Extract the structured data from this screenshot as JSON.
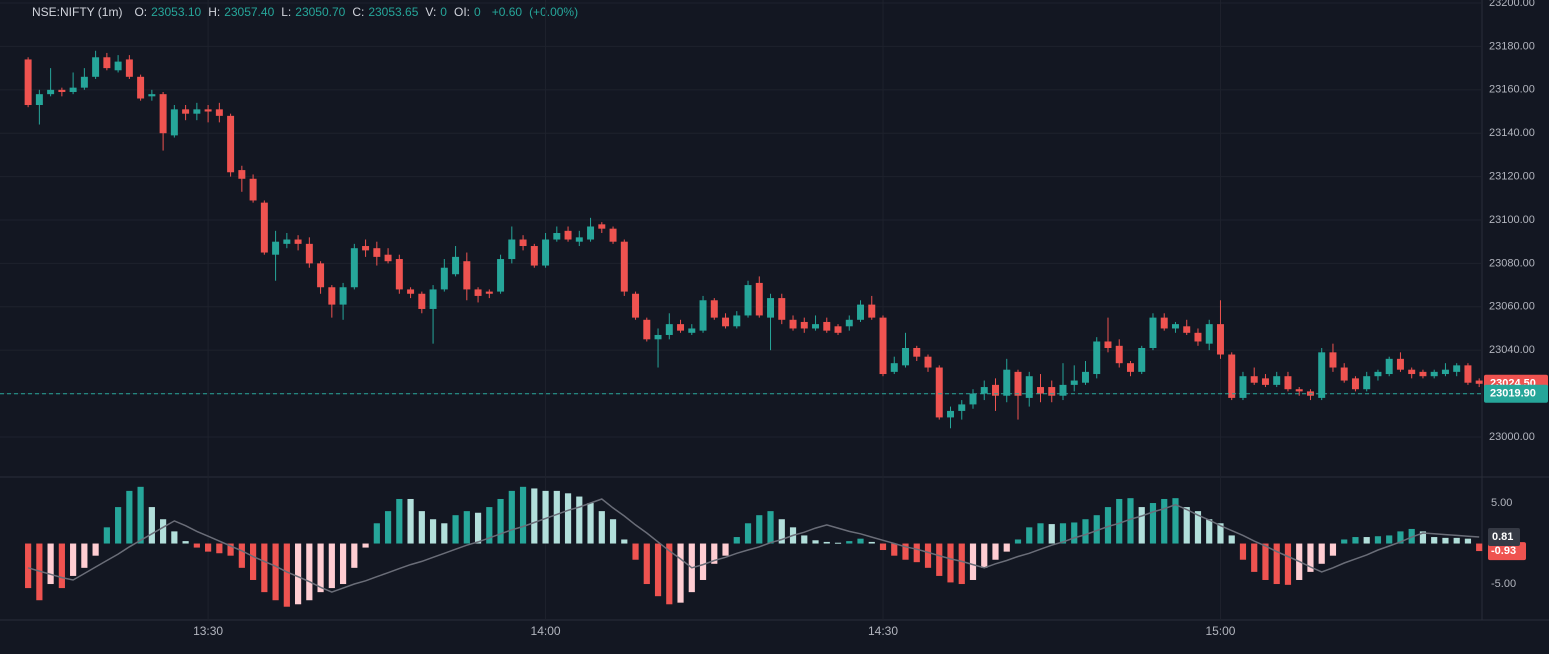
{
  "chart_data": [
    {
      "type": "candlestick",
      "symbol": "NSE:NIFTY (1m)",
      "legend": [
        {
          "label": "O:",
          "value": "23053.10"
        },
        {
          "label": "H:",
          "value": "23057.40"
        },
        {
          "label": "L:",
          "value": "23050.70"
        },
        {
          "label": "C:",
          "value": "23053.65"
        },
        {
          "label": "V:",
          "value": "0"
        },
        {
          "label": "OI:",
          "value": "0"
        }
      ],
      "change": "+0.60",
      "change_pct": "(+0.00%)",
      "up_color": "#26a69a",
      "down_color": "#ef5350",
      "xlim": [
        -2.5,
        129.25
      ],
      "xticks": [
        {
          "value": 16,
          "label": "13:30"
        },
        {
          "value": 46,
          "label": "14:00"
        },
        {
          "value": 76,
          "label": "14:30"
        },
        {
          "value": 106,
          "label": "15:00"
        }
      ],
      "ylim": [
        22982,
        23201.4
      ],
      "yticks": [
        {
          "value": 23000,
          "label": "23000.00"
        },
        {
          "value": 23020,
          "label": "23020.00"
        },
        {
          "value": 23040,
          "label": "23040.00"
        },
        {
          "value": 23060,
          "label": "23060.00"
        },
        {
          "value": 23080,
          "label": "23080.00"
        },
        {
          "value": 23100,
          "label": "23100.00"
        },
        {
          "value": 23120,
          "label": "23120.00"
        },
        {
          "value": 23140,
          "label": "23140.00"
        },
        {
          "value": 23160,
          "label": "23160.00"
        },
        {
          "value": 23180,
          "label": "23180.00"
        },
        {
          "value": 23200,
          "label": "23200.00"
        }
      ],
      "grid": true,
      "price_lines": [
        {
          "value": 23024.5,
          "label": "23024.50",
          "color": "#ef5350",
          "dashed": false
        },
        {
          "value": 23019.9,
          "label": "23019.90",
          "color": "#26a69a",
          "dashed": true
        }
      ],
      "ohlc": [
        [
          23174,
          23175,
          23152,
          23153
        ],
        [
          23153,
          23160,
          23144,
          23158
        ],
        [
          23158,
          23170,
          23157,
          23160
        ],
        [
          23160,
          23161,
          23157,
          23159
        ],
        [
          23159,
          23168,
          23158,
          23161
        ],
        [
          23161,
          23170,
          23160,
          23166
        ],
        [
          23166,
          23178,
          23165,
          23175
        ],
        [
          23175,
          23177,
          23169,
          23170
        ],
        [
          23169,
          23176,
          23168,
          23173
        ],
        [
          23174,
          23176,
          23165,
          23166
        ],
        [
          23166,
          23167,
          23155,
          23156
        ],
        [
          23157,
          23160,
          23155,
          23158
        ],
        [
          23158,
          23159,
          23132,
          23140
        ],
        [
          23139,
          23153,
          23138,
          23151
        ],
        [
          23151,
          23153,
          23146,
          23149
        ],
        [
          23149,
          23154,
          23146,
          23151
        ],
        [
          23151,
          23153,
          23145,
          23150
        ],
        [
          23151,
          23154,
          23145,
          23148
        ],
        [
          23148,
          23149,
          23120,
          23122
        ],
        [
          23123,
          23125,
          23113,
          23119
        ],
        [
          23119,
          23121,
          23108,
          23109
        ],
        [
          23108,
          23109,
          23084,
          23085
        ],
        [
          23084,
          23095,
          23072,
          23090
        ],
        [
          23089,
          23094,
          23087,
          23091
        ],
        [
          23091,
          23093,
          23086,
          23089
        ],
        [
          23089,
          23092,
          23078,
          23080
        ],
        [
          23080,
          23081,
          23066,
          23069
        ],
        [
          23069,
          23070,
          23055,
          23061
        ],
        [
          23061,
          23071,
          23054,
          23069
        ],
        [
          23069,
          23089,
          23068,
          23087
        ],
        [
          23088,
          23091,
          23083,
          23086
        ],
        [
          23087,
          23090,
          23079,
          23083
        ],
        [
          23084,
          23087,
          23080,
          23081
        ],
        [
          23082,
          23084,
          23066,
          23068
        ],
        [
          23068,
          23069,
          23064,
          23066
        ],
        [
          23066,
          23067,
          23057,
          23059
        ],
        [
          23059,
          23070,
          23043,
          23068
        ],
        [
          23068,
          23082,
          23067,
          23078
        ],
        [
          23075,
          23088,
          23074,
          23083
        ],
        [
          23081,
          23085,
          23063,
          23068
        ],
        [
          23068,
          23069,
          23062,
          23065
        ],
        [
          23067,
          23068,
          23064,
          23066
        ],
        [
          23067,
          23084,
          23066,
          23082
        ],
        [
          23082,
          23097,
          23080,
          23091
        ],
        [
          23091,
          23093,
          23086,
          23088
        ],
        [
          23088,
          23089,
          23078,
          23079
        ],
        [
          23079,
          23094,
          23078,
          23091
        ],
        [
          23091,
          23097,
          23090,
          23094
        ],
        [
          23095,
          23097,
          23090,
          23091
        ],
        [
          23090,
          23095,
          23088,
          23092
        ],
        [
          23091,
          23101,
          23090,
          23097
        ],
        [
          23098,
          23099,
          23094,
          23096
        ],
        [
          23096,
          23097,
          23089,
          23090
        ],
        [
          23090,
          23091,
          23065,
          23067
        ],
        [
          23066,
          23067,
          23054,
          23055
        ],
        [
          23054,
          23055,
          23044,
          23045
        ],
        [
          23045,
          23050,
          23032,
          23047
        ],
        [
          23047,
          23057,
          23045,
          23052
        ],
        [
          23052,
          23054,
          23048,
          23049
        ],
        [
          23048,
          23052,
          23047,
          23050
        ],
        [
          23049,
          23065,
          23048,
          23063
        ],
        [
          23063,
          23064,
          23054,
          23055
        ],
        [
          23055,
          23057,
          23050,
          23051
        ],
        [
          23051,
          23058,
          23050,
          23056
        ],
        [
          23056,
          23072,
          23055,
          23070
        ],
        [
          23071,
          23074,
          23055,
          23056
        ],
        [
          23055,
          23066,
          23040,
          23064
        ],
        [
          23064,
          23066,
          23052,
          23054
        ],
        [
          23054,
          23056,
          23049,
          23050
        ],
        [
          23053,
          23055,
          23048,
          23050
        ],
        [
          23050,
          23056,
          23049,
          23052
        ],
        [
          23053,
          23055,
          23048,
          23049
        ],
        [
          23051,
          23052,
          23047,
          23048
        ],
        [
          23051,
          23056,
          23049,
          23054
        ],
        [
          23054,
          23063,
          23053,
          23061
        ],
        [
          23061,
          23065,
          23054,
          23055
        ],
        [
          23055,
          23056,
          23028,
          23029
        ],
        [
          23030,
          23037,
          23029,
          23034
        ],
        [
          23033,
          23048,
          23032,
          23041
        ],
        [
          23041,
          23042,
          23035,
          23037
        ],
        [
          23037,
          23038,
          23030,
          23032
        ],
        [
          23032,
          23033,
          23008,
          23009
        ],
        [
          23009,
          23014,
          23004,
          23012
        ],
        [
          23012,
          23017,
          23008,
          23015
        ],
        [
          23015,
          23022,
          23013,
          23020
        ],
        [
          23020,
          23026,
          23017,
          23023
        ],
        [
          23024,
          23027,
          23012,
          23019
        ],
        [
          23019,
          23036,
          23016,
          23031
        ],
        [
          23030,
          23031,
          23008,
          23019
        ],
        [
          23018,
          23030,
          23014,
          23028
        ],
        [
          23023,
          23029,
          23016,
          23020
        ],
        [
          23023,
          23026,
          23016,
          23019
        ],
        [
          23019,
          23034,
          23017,
          23024
        ],
        [
          23024,
          23033,
          23021,
          23026
        ],
        [
          23025,
          23035,
          23024,
          23030
        ],
        [
          23029,
          23046,
          23027,
          23044
        ],
        [
          23044,
          23055,
          23039,
          23041
        ],
        [
          23042,
          23045,
          23032,
          23034
        ],
        [
          23034,
          23035,
          23028,
          23030
        ],
        [
          23030,
          23042,
          23029,
          23041
        ],
        [
          23041,
          23057,
          23040,
          23055
        ],
        [
          23055,
          23057,
          23049,
          23050
        ],
        [
          23050,
          23053,
          23048,
          23052
        ],
        [
          23051,
          23054,
          23047,
          23048
        ],
        [
          23048,
          23050,
          23042,
          23044
        ],
        [
          23043,
          23054,
          23040,
          23052
        ],
        [
          23052,
          23063,
          23036,
          23038
        ],
        [
          23038,
          23039,
          23017,
          23018
        ],
        [
          23018,
          23030,
          23017,
          23028
        ],
        [
          23028,
          23032,
          23024,
          23025
        ],
        [
          23027,
          23029,
          23023,
          23024
        ],
        [
          23024,
          23030,
          23023,
          23028
        ],
        [
          23028,
          23030,
          23021,
          23022
        ],
        [
          23022,
          23023,
          23019,
          23021
        ],
        [
          23021,
          23022,
          23017,
          23019
        ],
        [
          23018,
          23041,
          23017,
          23039
        ],
        [
          23039,
          23043,
          23030,
          23032
        ],
        [
          23032,
          23034,
          23025,
          23026
        ],
        [
          23027,
          23028,
          23021,
          23022
        ],
        [
          23022,
          23030,
          23021,
          23028
        ],
        [
          23028,
          23031,
          23026,
          23030
        ],
        [
          23029,
          23037,
          23028,
          23036
        ],
        [
          23036,
          23039,
          23030,
          23031
        ],
        [
          23031,
          23032,
          23027,
          23029
        ],
        [
          23030,
          23031,
          23027,
          23028
        ],
        [
          23028,
          23031,
          23027,
          23030
        ],
        [
          23029,
          23034,
          23028,
          23031
        ],
        [
          23030,
          23034,
          23028,
          23033
        ],
        [
          23033,
          23034,
          23024,
          23025
        ],
        [
          23026,
          23027,
          23023,
          23024.5
        ]
      ]
    },
    {
      "type": "histogram-indicator",
      "xlim": [
        -2.5,
        129.25
      ],
      "ylim": [
        -9.44,
        8.09
      ],
      "yticks": [
        {
          "value": 5,
          "label": "5.00"
        },
        {
          "value": -5,
          "label": "-5.00"
        }
      ],
      "colors": {
        "up_rising": "#26a69a",
        "up_falling": "#b2dfdb",
        "down_falling": "#ef5350",
        "down_rising": "#ffcdd2"
      },
      "series": [
        {
          "kind": "bars",
          "values": [
            -5.5,
            -7,
            -5,
            -5.5,
            -4,
            -3,
            -1.5,
            2,
            4.5,
            6.5,
            7,
            4.5,
            3,
            1.5,
            0.3,
            -0.5,
            -1,
            -1.2,
            -1.5,
            -3,
            -4.5,
            -6,
            -7,
            -7.8,
            -7.5,
            -7,
            -6,
            -5.5,
            -5,
            -3,
            -0.5,
            2.5,
            4,
            5.5,
            5.5,
            4,
            3,
            2.5,
            3.5,
            4,
            3.8,
            4.5,
            5.5,
            6.5,
            7,
            6.8,
            6.5,
            6.5,
            6.2,
            5.8,
            5,
            4,
            3,
            0.5,
            -2,
            -5,
            -6.5,
            -7.5,
            -7.3,
            -6,
            -4.5,
            -2.5,
            -1.5,
            0.8,
            2.5,
            3.5,
            4,
            3,
            2,
            1,
            0.4,
            0.2,
            0.1,
            0.3,
            0.6,
            0.2,
            -0.8,
            -1.5,
            -2,
            -2.3,
            -3,
            -4,
            -4.8,
            -5,
            -4.5,
            -3,
            -2,
            -1,
            0.5,
            2,
            2.5,
            2.4,
            2.5,
            2.6,
            3,
            3.5,
            4.5,
            5.5,
            5.6,
            4.5,
            5,
            5.5,
            5.6,
            4.5,
            4,
            3,
            2.5,
            1,
            -2,
            -3.5,
            -4.5,
            -5,
            -5.1,
            -4.5,
            -3.5,
            -2.5,
            -1.5,
            0.5,
            0.8,
            0.8,
            0.9,
            1,
            1.5,
            1.8,
            1.5,
            0.8,
            0.7,
            0.7,
            0.6,
            -0.93
          ],
          "last_label": "-0.93"
        },
        {
          "kind": "line",
          "color": "#6a6d78",
          "values": [
            -3,
            -3.4,
            -3.8,
            -4.2,
            -4.5,
            -3.7,
            -2.9,
            -2.1,
            -1.3,
            -0.4,
            0.4,
            1.2,
            2.0,
            2.8,
            2.2,
            1.5,
            0.9,
            0.3,
            -0.3,
            -0.9,
            -1.6,
            -2.2,
            -2.8,
            -3.5,
            -4.1,
            -4.7,
            -5.4,
            -6.0,
            -5.5,
            -5.0,
            -4.6,
            -4.1,
            -3.6,
            -3.1,
            -2.6,
            -2.2,
            -1.7,
            -1.2,
            -0.7,
            -0.2,
            0.2,
            0.7,
            1.2,
            1.7,
            2.1,
            2.6,
            3.1,
            3.6,
            4.1,
            4.5,
            5.0,
            5.5,
            4.4,
            3.4,
            2.3,
            1.3,
            0.2,
            -0.9,
            -1.9,
            -3.0,
            -2.6,
            -2.1,
            -1.7,
            -1.2,
            -0.8,
            -0.4,
            0.1,
            0.5,
            1.0,
            1.4,
            1.9,
            2.3,
            1.9,
            1.5,
            1.2,
            0.8,
            0.4,
            0.0,
            -0.4,
            -0.7,
            -1.1,
            -1.5,
            -1.9,
            -2.2,
            -2.6,
            -3.0,
            -2.5,
            -2.1,
            -1.6,
            -1.2,
            -0.7,
            -0.2,
            0.2,
            0.7,
            1.1,
            1.6,
            2.1,
            2.5,
            3.0,
            3.4,
            3.9,
            4.3,
            4.8,
            4.2,
            3.5,
            2.9,
            2.2,
            1.6,
            1.0,
            0.3,
            -0.3,
            -1.0,
            -1.6,
            -2.2,
            -2.9,
            -3.5,
            -3.0,
            -2.4,
            -1.9,
            -1.4,
            -0.8,
            -0.3,
            0.2,
            0.8,
            1.3,
            1.2,
            1.1,
            1.0,
            0.9,
            0.81
          ],
          "last_label": "0.81"
        }
      ]
    }
  ]
}
